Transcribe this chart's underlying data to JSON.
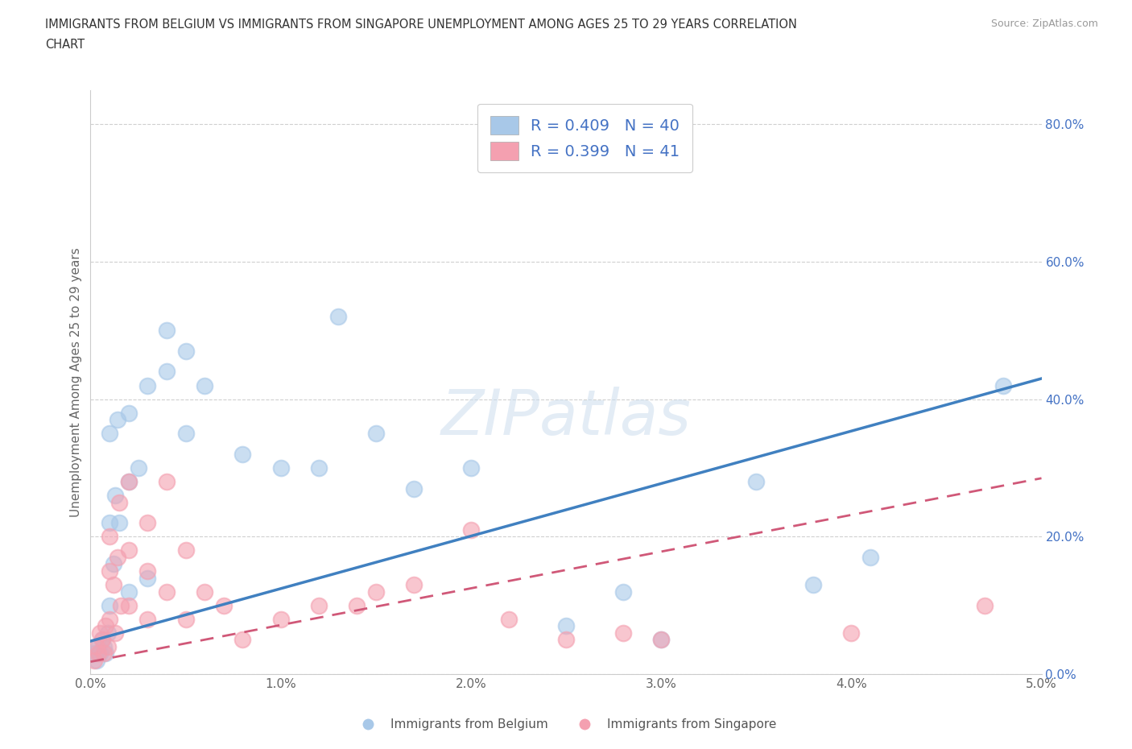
{
  "title": "IMMIGRANTS FROM BELGIUM VS IMMIGRANTS FROM SINGAPORE UNEMPLOYMENT AMONG AGES 25 TO 29 YEARS CORRELATION\nCHART",
  "source": "Source: ZipAtlas.com",
  "ylabel": "Unemployment Among Ages 25 to 29 years",
  "xlim": [
    0.0,
    0.05
  ],
  "ylim": [
    0.0,
    0.85
  ],
  "xticks": [
    0.0,
    0.01,
    0.02,
    0.03,
    0.04,
    0.05
  ],
  "xtick_labels": [
    "0.0%",
    "1.0%",
    "2.0%",
    "3.0%",
    "4.0%",
    "5.0%"
  ],
  "yticks": [
    0.0,
    0.2,
    0.4,
    0.6,
    0.8
  ],
  "ytick_labels": [
    "0.0%",
    "20.0%",
    "40.0%",
    "60.0%",
    "80.0%"
  ],
  "belgium_color": "#a8c8e8",
  "singapore_color": "#f4a0b0",
  "trend_belgium_color": "#4080c0",
  "trend_singapore_color": "#d05878",
  "trend_singapore_dash": true,
  "legend_r_belgium": "R = 0.409",
  "legend_n_belgium": "N = 40",
  "legend_r_singapore": "R = 0.399",
  "legend_n_singapore": "N = 41",
  "legend_label_belgium": "Immigrants from Belgium",
  "legend_label_singapore": "Immigrants from Singapore",
  "watermark": "ZIPatlas",
  "background_color": "#ffffff",
  "grid_color": "#d0d0d0",
  "tick_color": "#4472c4",
  "belgium_trend_y0": 0.048,
  "belgium_trend_y1": 0.43,
  "singapore_trend_y0": 0.018,
  "singapore_trend_y1": 0.285,
  "belgium_x": [
    0.0002,
    0.0003,
    0.0004,
    0.0005,
    0.0006,
    0.0007,
    0.0008,
    0.0009,
    0.001,
    0.001,
    0.001,
    0.0012,
    0.0013,
    0.0014,
    0.0015,
    0.002,
    0.002,
    0.002,
    0.0025,
    0.003,
    0.003,
    0.004,
    0.004,
    0.005,
    0.005,
    0.006,
    0.008,
    0.01,
    0.012,
    0.013,
    0.015,
    0.017,
    0.02,
    0.025,
    0.028,
    0.03,
    0.035,
    0.038,
    0.041,
    0.048
  ],
  "belgium_y": [
    0.03,
    0.02,
    0.04,
    0.03,
    0.05,
    0.04,
    0.03,
    0.06,
    0.1,
    0.22,
    0.35,
    0.16,
    0.26,
    0.37,
    0.22,
    0.12,
    0.28,
    0.38,
    0.3,
    0.14,
    0.42,
    0.44,
    0.5,
    0.47,
    0.35,
    0.42,
    0.32,
    0.3,
    0.3,
    0.52,
    0.35,
    0.27,
    0.3,
    0.07,
    0.12,
    0.05,
    0.28,
    0.13,
    0.17,
    0.42
  ],
  "singapore_x": [
    0.0002,
    0.0003,
    0.0004,
    0.0005,
    0.0006,
    0.0007,
    0.0008,
    0.0009,
    0.001,
    0.001,
    0.001,
    0.0012,
    0.0013,
    0.0014,
    0.0015,
    0.0016,
    0.002,
    0.002,
    0.002,
    0.003,
    0.003,
    0.003,
    0.004,
    0.004,
    0.005,
    0.005,
    0.006,
    0.007,
    0.008,
    0.01,
    0.012,
    0.014,
    0.015,
    0.017,
    0.02,
    0.022,
    0.025,
    0.028,
    0.03,
    0.04,
    0.047
  ],
  "singapore_y": [
    0.02,
    0.04,
    0.03,
    0.06,
    0.05,
    0.03,
    0.07,
    0.04,
    0.08,
    0.15,
    0.2,
    0.13,
    0.06,
    0.17,
    0.25,
    0.1,
    0.1,
    0.18,
    0.28,
    0.08,
    0.15,
    0.22,
    0.12,
    0.28,
    0.08,
    0.18,
    0.12,
    0.1,
    0.05,
    0.08,
    0.1,
    0.1,
    0.12,
    0.13,
    0.21,
    0.08,
    0.05,
    0.06,
    0.05,
    0.06,
    0.1
  ]
}
